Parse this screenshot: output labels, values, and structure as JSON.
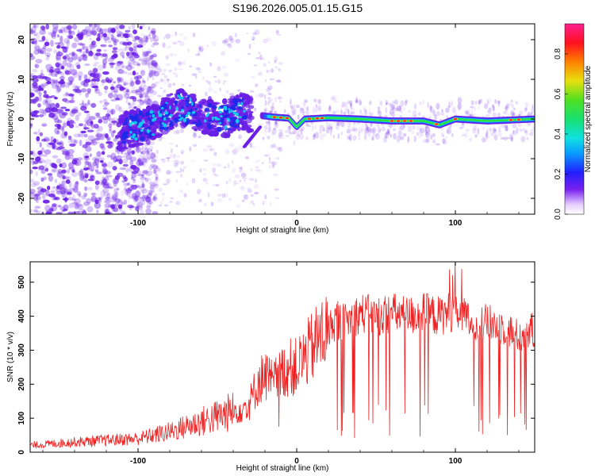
{
  "title": "S196.2026.005.01.15.G15",
  "colors": {
    "snr_line": "#ee2222",
    "blob_purple": "#6a1ee6",
    "ridge_cyan": "#10d0f0",
    "ridge_green": "#30e030",
    "peak_red": "#ff1030"
  },
  "chart_data": [
    {
      "type": "heatmap",
      "title": "",
      "xlabel": "Height of straight line (km)",
      "ylabel": "Frequency (Hz)",
      "xlim": [
        -168,
        150
      ],
      "ylim": [
        -24,
        24
      ],
      "x_ticks": [
        -100,
        0,
        100
      ],
      "y_ticks": [
        -20,
        -10,
        0,
        10,
        20
      ],
      "colorbar": {
        "label": "Normalized spectral amplitude",
        "range": [
          0,
          0.95
        ],
        "ticks": [
          0.0,
          0.2,
          0.4,
          0.6,
          0.8
        ],
        "tick_labels": [
          "0.0",
          "0.2",
          "0.4",
          "0.6",
          "0.8"
        ],
        "colormap": "rainbow (white at 0)"
      },
      "ridge_description": "scattered noise left of -110 km, energetic clusters -110 to -30 km near 0 to 5 Hz, stable ridge near 0 Hz from -20 to 150 km",
      "ridge": {
        "x": [
          -110,
          -90,
          -75,
          -60,
          -45,
          -35,
          -25,
          -15,
          -5,
          0,
          5,
          20,
          40,
          60,
          80,
          90,
          100,
          120,
          150
        ],
        "y": [
          -3,
          -1,
          3,
          1,
          0,
          2,
          1,
          0.5,
          0.2,
          -2,
          0,
          0.3,
          0,
          -0.5,
          -0.5,
          -1.5,
          0,
          -0.5,
          0
        ]
      }
    },
    {
      "type": "line",
      "title": "",
      "xlabel": "Height of straight line (km)",
      "ylabel": "SNR (10 * v/v)",
      "xlim": [
        -168,
        150
      ],
      "ylim": [
        0,
        560
      ],
      "x_ticks": [
        -100,
        0,
        100
      ],
      "y_ticks": [
        0,
        100,
        200,
        300,
        400,
        500
      ],
      "series": [
        {
          "name": "SNR",
          "x": [
            -168,
            -140,
            -120,
            -100,
            -80,
            -60,
            -40,
            -30,
            -25,
            -20,
            -15,
            -10,
            -5,
            0,
            5,
            10,
            15,
            20,
            25,
            30,
            40,
            50,
            60,
            70,
            80,
            90,
            100,
            110,
            120,
            130,
            140,
            150
          ],
          "values": [
            20,
            30,
            35,
            40,
            60,
            90,
            120,
            140,
            200,
            230,
            200,
            230,
            250,
            250,
            280,
            310,
            340,
            360,
            390,
            380,
            410,
            400,
            410,
            400,
            410,
            400,
            420,
            380,
            380,
            370,
            340,
            360
          ]
        }
      ]
    }
  ]
}
